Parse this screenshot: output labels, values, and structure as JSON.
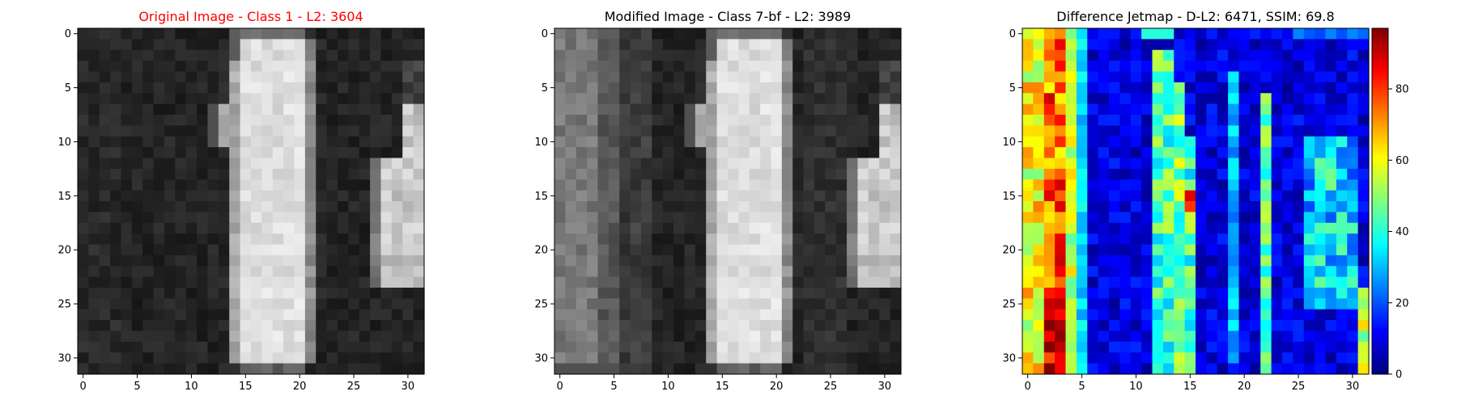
{
  "chart_data": [
    {
      "type": "heatmap",
      "title": "Original Image - Class 1 - L2: 3604",
      "title_color": "#ff0000",
      "colormap": "gray",
      "pixel_grid": [
        32,
        32
      ],
      "xlim": [
        -0.5,
        31.5
      ],
      "ylim": [
        31.5,
        -0.5
      ],
      "xticks": [
        0,
        5,
        10,
        15,
        20,
        25,
        30
      ],
      "yticks": [
        0,
        5,
        10,
        15,
        20,
        25,
        30
      ],
      "content": "dark background with a bright vertical digit '1' stroke spanning columns 15-21 with a serif at column 13-14 near rows 7-10, and a second bright partial stroke at the right edge, columns 28-31, rows 7-23"
    },
    {
      "type": "heatmap",
      "title": "Modified Image - Class 7-bf - L2: 3989",
      "title_color": "#000000",
      "colormap": "gray",
      "pixel_grid": [
        32,
        32
      ],
      "xlim": [
        -0.5,
        31.5
      ],
      "ylim": [
        31.5,
        -0.5
      ],
      "xticks": [
        0,
        5,
        10,
        15,
        20,
        25,
        30
      ],
      "yticks": [
        0,
        5,
        10,
        15,
        20,
        25,
        30
      ],
      "content": "same digit as original but the left region (columns 0-5) is brightened to mid-gray with faint vertical banding"
    },
    {
      "type": "heatmap",
      "title": "Difference Jetmap - D-L2: 6471, SSIM: 69.8",
      "title_color": "#000000",
      "colormap": "jet",
      "pixel_grid": [
        32,
        32
      ],
      "xlim": [
        -0.5,
        31.5
      ],
      "ylim": [
        31.5,
        -0.5
      ],
      "xticks": [
        0,
        5,
        10,
        15,
        20,
        25,
        30
      ],
      "yticks": [
        0,
        5,
        10,
        15,
        20,
        25,
        30
      ],
      "colorbar": {
        "min": 0,
        "max": 97,
        "ticks": [
          0,
          20,
          40,
          60,
          80
        ]
      },
      "content": "high differences (60-97) in columns 0-4, moderate cyan-yellow vertical streaks near columns 12-15, 19-20, 22 and 27-30; low (blue) elsewhere"
    }
  ]
}
